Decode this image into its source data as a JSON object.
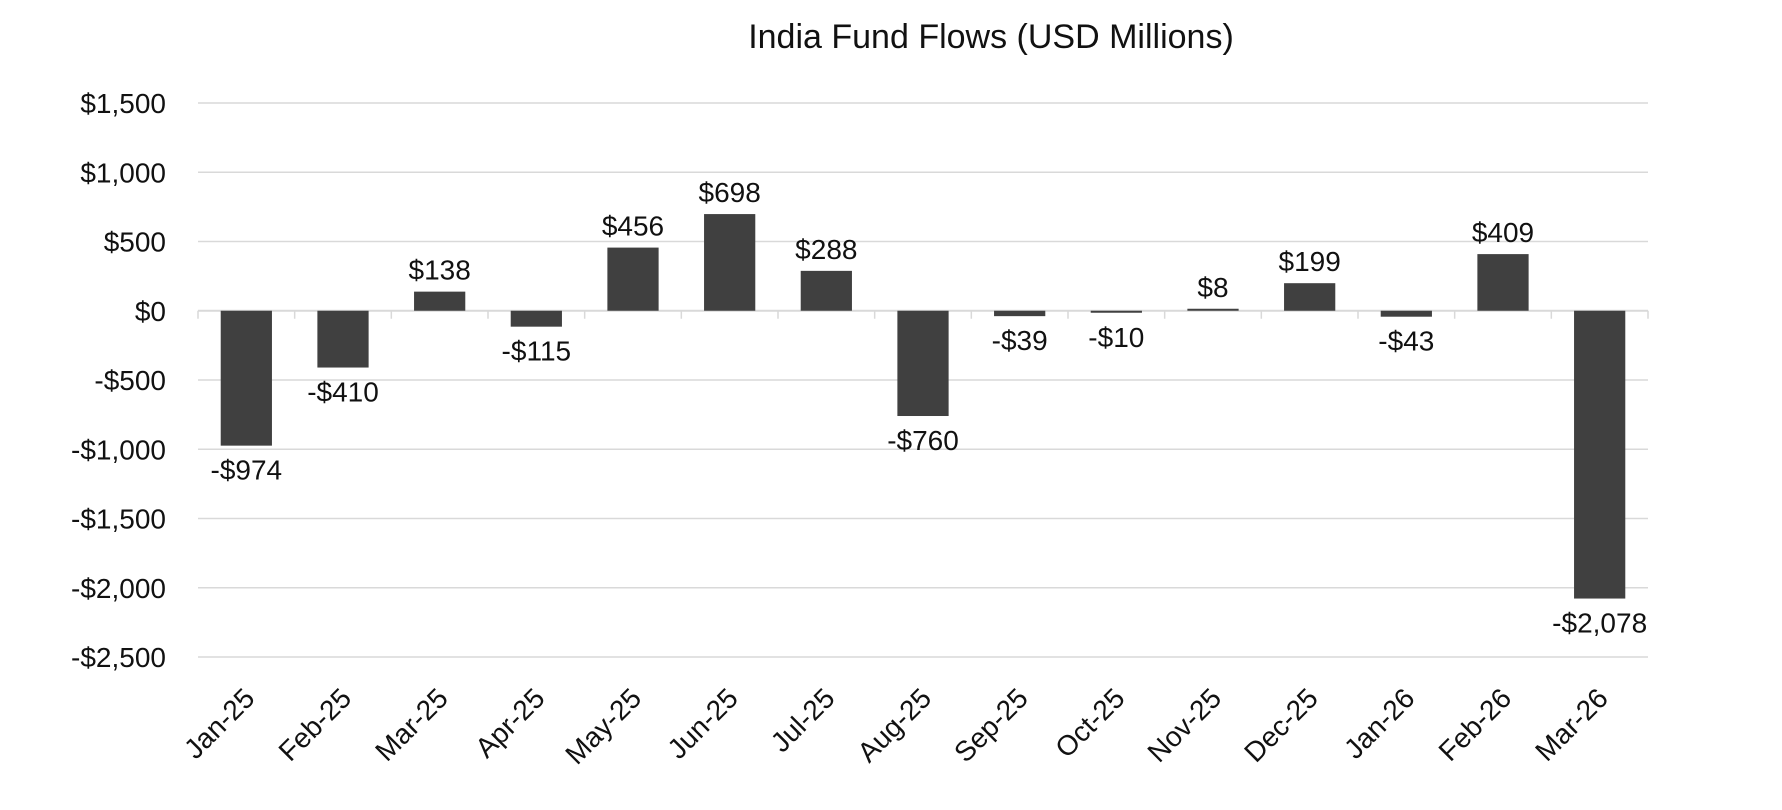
{
  "chart_data": {
    "type": "bar",
    "title": "India Fund Flows (USD Millions)",
    "xlabel": "",
    "ylabel": "",
    "ylim": [
      -2500,
      1500
    ],
    "yticks": [
      1500,
      1000,
      500,
      0,
      -500,
      -1000,
      -1500,
      -2000,
      -2500
    ],
    "ytick_labels": [
      "$1,500",
      "$1,000",
      "$500",
      "$0",
      "-$500",
      "-$1,000",
      "-$1,500",
      "-$2,000",
      "-$2,500"
    ],
    "grid": true,
    "bar_color": "#404040",
    "categories": [
      "Jan-25",
      "Feb-25",
      "Mar-25",
      "Apr-25",
      "May-25",
      "Jun-25",
      "Jul-25",
      "Aug-25",
      "Sep-25",
      "Oct-25",
      "Nov-25",
      "Dec-25",
      "Jan-26",
      "Feb-26",
      "Mar-26"
    ],
    "values": [
      -974,
      -410,
      138,
      -115,
      456,
      698,
      288,
      -760,
      -39,
      -10,
      8,
      199,
      -43,
      409,
      -2078
    ],
    "data_labels": [
      "-$974",
      "-$410",
      "$138",
      "-$115",
      "$456",
      "$698",
      "$288",
      "-$760",
      "-$39",
      "-$10",
      "$8",
      "$199",
      "-$43",
      "$409",
      "-$2,078"
    ]
  }
}
